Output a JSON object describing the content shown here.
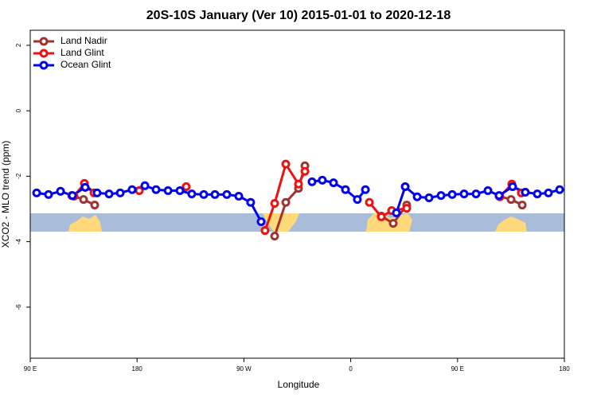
{
  "chart_data": {
    "type": "line",
    "title": "20S-10S January (Ver 10)   2015-01-01 to 2020-12-18",
    "x_label": "Longitude",
    "y_label": "XCO2 - MLO trend (ppm)",
    "xlim": [
      90,
      540
    ],
    "ylim": [
      -7.56,
      2.46
    ],
    "xticks": [
      {
        "value": 90,
        "label": "90 E"
      },
      {
        "value": 180,
        "label": "180"
      },
      {
        "value": 270,
        "label": "90 W"
      },
      {
        "value": 360,
        "label": "0"
      },
      {
        "value": 450,
        "label": "90 E"
      },
      {
        "value": 540,
        "label": "180"
      }
    ],
    "yticks": [
      2,
      0,
      -2,
      -4,
      -6
    ],
    "legend": "top-left",
    "series": [
      {
        "name": "Land Nadir",
        "color": "#a03232",
        "x": [
          124.9,
          134.9,
          144.3,
          null,
          295.9,
          305.3,
          316.0,
          321.4,
          null,
          385.8,
          395.8,
          407.2,
          null,
          485.0,
          495.1,
          504.5
        ],
        "values": [
          -2.59,
          -2.71,
          -2.88,
          null,
          -3.83,
          -2.8,
          -2.37,
          -1.68,
          null,
          -3.22,
          -3.44,
          -2.88,
          null,
          -2.61,
          -2.71,
          -2.88
        ]
      },
      {
        "name": "Land Glint",
        "color": "#ee1111",
        "x": [
          126.9,
          135.6,
          143.7,
          null,
          181.9,
          null,
          221.4,
          null,
          287.8,
          295.9,
          305.3,
          316.0,
          321.4,
          null,
          375.7,
          385.8,
          394.5,
          407.2,
          null,
          485.7,
          495.7,
          503.8
        ],
        "values": [
          -2.61,
          -2.22,
          -2.51,
          null,
          -2.44,
          null,
          -2.32,
          null,
          -3.66,
          -2.83,
          -1.63,
          -2.24,
          -1.85,
          null,
          -2.8,
          -3.24,
          -3.05,
          -2.98,
          null,
          -2.63,
          -2.24,
          -2.51
        ]
      },
      {
        "name": "Ocean Glint",
        "color": "#0000ee",
        "x": [
          95.4,
          105.4,
          115.5,
          125.5,
          136.3,
          146.3,
          156.4,
          165.8,
          175.8,
          186.6,
          196.0,
          206.1,
          216.1,
          226.1,
          236.2,
          245.6,
          255.6,
          265.7,
          275.7,
          284.5,
          null,
          327.4,
          336.1,
          345.5,
          355.6,
          365.6,
          372.4,
          null,
          398.5,
          405.9,
          416.0,
          426.0,
          436.1,
          445.5,
          455.5,
          465.6,
          475.6,
          485.0,
          496.4,
          507.1,
          517.2,
          526.6,
          536.0
        ],
        "values": [
          -2.51,
          -2.56,
          -2.46,
          -2.59,
          -2.34,
          -2.51,
          -2.54,
          -2.51,
          -2.41,
          -2.29,
          -2.41,
          -2.44,
          -2.44,
          -2.54,
          -2.56,
          -2.56,
          -2.56,
          -2.61,
          -2.8,
          -3.39,
          null,
          -2.17,
          -2.12,
          -2.2,
          -2.41,
          -2.71,
          -2.41,
          null,
          -3.12,
          -2.32,
          -2.63,
          -2.66,
          -2.59,
          -2.56,
          -2.54,
          -2.54,
          -2.44,
          -2.59,
          -2.32,
          -2.49,
          -2.54,
          -2.51,
          -2.41
        ]
      }
    ]
  }
}
